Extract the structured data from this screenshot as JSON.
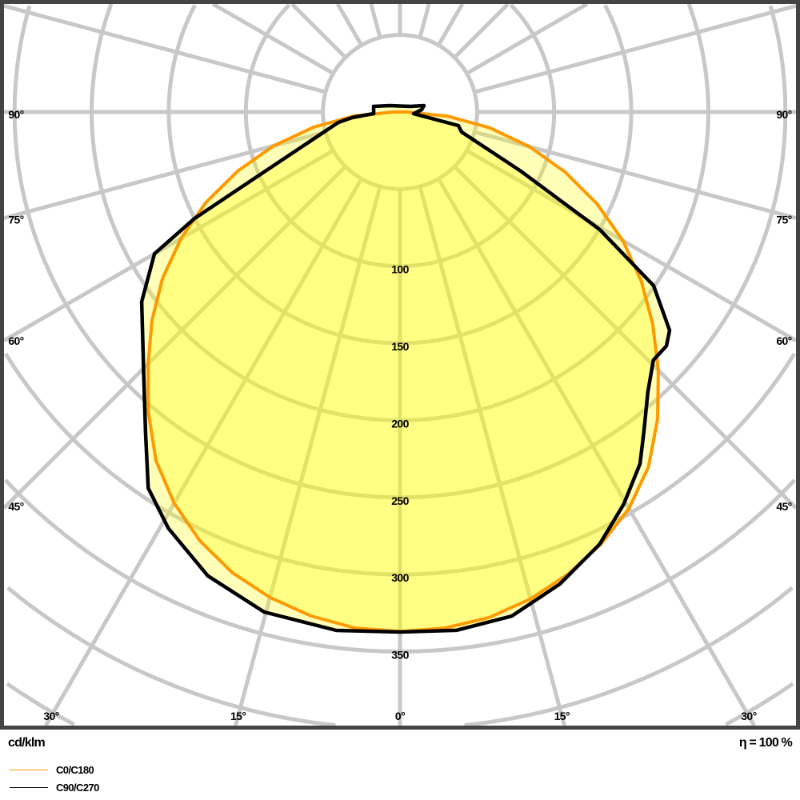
{
  "chart_data": {
    "type": "polar-line",
    "unit_label": "cd/klm",
    "efficiency_label": "η = 100 %",
    "radial_ticks": [
      "100",
      "150",
      "200",
      "250",
      "300",
      "350"
    ],
    "radial_rings": [
      50,
      100,
      150,
      200,
      250,
      300,
      350,
      400,
      450
    ],
    "angle_spoke_step_deg": 15,
    "angle_labels_side": [
      {
        "angle": 90,
        "text": "90°"
      },
      {
        "angle": 75,
        "text": "75°"
      },
      {
        "angle": 60,
        "text": "60°"
      },
      {
        "angle": 45,
        "text": "45°"
      }
    ],
    "angle_labels_bottom": [
      {
        "angle": -30,
        "text": "30°"
      },
      {
        "angle": -15,
        "text": "15°"
      },
      {
        "angle": 0,
        "text": "0°"
      },
      {
        "angle": 15,
        "text": "15°"
      },
      {
        "angle": 30,
        "text": "30°"
      }
    ],
    "series": [
      {
        "name": "C0/C180",
        "color": "#ff9900",
        "points": [
          [
            -90,
            4
          ],
          [
            -85,
            30
          ],
          [
            -80,
            57
          ],
          [
            -75,
            85
          ],
          [
            -70,
            112
          ],
          [
            -65,
            139
          ],
          [
            -60,
            164
          ],
          [
            -55,
            188
          ],
          [
            -50,
            210
          ],
          [
            -45,
            231
          ],
          [
            -40,
            254
          ],
          [
            -35,
            276
          ],
          [
            -30,
            293
          ],
          [
            -25,
            307
          ],
          [
            -20,
            318
          ],
          [
            -15,
            326
          ],
          [
            -10,
            332
          ],
          [
            -5,
            336
          ],
          [
            0,
            337
          ],
          [
            5,
            336
          ],
          [
            10,
            333
          ],
          [
            15,
            327
          ],
          [
            20,
            319
          ],
          [
            25,
            309
          ],
          [
            30,
            297
          ],
          [
            35,
            281
          ],
          [
            40,
            260
          ],
          [
            45,
            237
          ],
          [
            50,
            214
          ],
          [
            55,
            191
          ],
          [
            60,
            167
          ],
          [
            65,
            141
          ],
          [
            70,
            114
          ],
          [
            75,
            87
          ],
          [
            80,
            59
          ],
          [
            85,
            31
          ],
          [
            90,
            4
          ]
        ]
      },
      {
        "name": "C90/C270",
        "color": "#000000",
        "points": [
          [
            -121.6,
            7.9
          ],
          [
            -102,
            17.5
          ],
          [
            -86.5,
            17.1
          ],
          [
            -83.3,
            31.3
          ],
          [
            -80.4,
            40.5
          ],
          [
            -66,
            98.3
          ],
          [
            -62.6,
            150.2
          ],
          [
            -60,
            183.9
          ],
          [
            -53.7,
            207.9
          ],
          [
            -43.9,
            239.6
          ],
          [
            -38.5,
            265.2
          ],
          [
            -33.8,
            293.6
          ],
          [
            -29.1,
            309
          ],
          [
            -22.5,
            325.7
          ],
          [
            -15.2,
            336.1
          ],
          [
            -7,
            338.8
          ],
          [
            0,
            337.3
          ],
          [
            6.2,
            338.2
          ],
          [
            12.5,
            334.9
          ],
          [
            18.7,
            323.3
          ],
          [
            24.8,
            308.8
          ],
          [
            29.7,
            292.9
          ],
          [
            34.3,
            276.3
          ],
          [
            37.3,
            261
          ],
          [
            41.5,
            242.6
          ],
          [
            45.6,
            230
          ],
          [
            48.7,
            230
          ],
          [
            51,
            225
          ],
          [
            55.6,
            199.4
          ],
          [
            59.5,
            150.5
          ],
          [
            64,
            86.6
          ],
          [
            72,
            42
          ],
          [
            76.9,
            38.9
          ],
          [
            83,
            8.9
          ],
          [
            96,
            14.1
          ],
          [
            105,
            16.1
          ],
          [
            118,
            7.7
          ]
        ]
      }
    ],
    "fill_color": "#ffff00",
    "grid_color": "#c8c8c8",
    "frame_color": "#444444"
  },
  "legend": [
    {
      "label": "C0/C180",
      "color": "#ff9900"
    },
    {
      "label": "C90/C270",
      "color": "#000000"
    }
  ]
}
